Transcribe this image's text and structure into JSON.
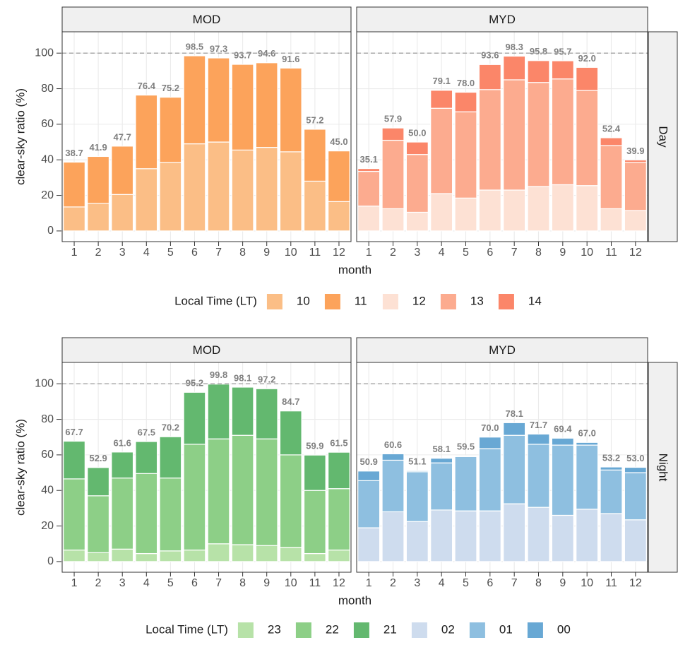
{
  "chart_data": [
    {
      "type": "bar",
      "stacked": true,
      "row_label": "Day",
      "x_label": "month",
      "y_label": "clear-sky ratio (%)",
      "legend_title": "Local Time (LT)",
      "categories": [
        "1",
        "2",
        "3",
        "4",
        "5",
        "6",
        "7",
        "8",
        "9",
        "10",
        "11",
        "12"
      ],
      "ylim": [
        -6,
        112
      ],
      "yticks": [
        0,
        20,
        40,
        60,
        80,
        100
      ],
      "hline": 100,
      "grid": true,
      "panels": [
        {
          "title": "MOD",
          "series": [
            {
              "name": "10",
              "color": "#fbbe86",
              "values": [
                13.5,
                15.5,
                20.5,
                35,
                38.5,
                49,
                50,
                45.5,
                47,
                44.5,
                28,
                16.5
              ]
            },
            {
              "name": "11",
              "color": "#fca35b",
              "values": [
                25.2,
                26.4,
                27.2,
                41.4,
                36.7,
                49.5,
                47.3,
                48.2,
                47.6,
                47.1,
                29.2,
                28.5
              ]
            }
          ],
          "totals": [
            38.7,
            41.9,
            47.7,
            76.4,
            75.2,
            98.5,
            97.3,
            93.7,
            94.6,
            91.6,
            57.2,
            45
          ],
          "total_labels": [
            "38.7",
            "41.9",
            "47.7",
            "76.4",
            "75.2",
            "98.5",
            "97.3",
            "93.7",
            "94.6",
            "91.6",
            "57.2",
            "45.0"
          ]
        },
        {
          "title": "MYD",
          "series": [
            {
              "name": "12",
              "color": "#fde1d4",
              "values": [
                14,
                12.5,
                10.5,
                21,
                18.5,
                23,
                23,
                25,
                26,
                25.5,
                12.5,
                11.5
              ]
            },
            {
              "name": "13",
              "color": "#fcab8f",
              "values": [
                19.5,
                38.5,
                32.5,
                48,
                48.5,
                56.5,
                62,
                58.5,
                59.5,
                53.5,
                35.5,
                27
              ]
            },
            {
              "name": "14",
              "color": "#fb8669",
              "values": [
                1.6,
                6.9,
                7,
                10.1,
                11,
                14.1,
                13.3,
                12.3,
                10.2,
                13,
                4.4,
                1.4
              ]
            }
          ],
          "totals": [
            35.1,
            57.9,
            50,
            79.1,
            78,
            93.6,
            98.3,
            95.8,
            95.7,
            92,
            52.4,
            39.9
          ],
          "total_labels": [
            "35.1",
            "57.9",
            "50.0",
            "79.1",
            "78.0",
            "93.6",
            "98.3",
            "95.8",
            "95.7",
            "92.0",
            "52.4",
            "39.9"
          ]
        }
      ]
    },
    {
      "type": "bar",
      "stacked": true,
      "row_label": "Night",
      "x_label": "month",
      "y_label": "clear-sky ratio (%)",
      "legend_title": "Local Time (LT)",
      "categories": [
        "1",
        "2",
        "3",
        "4",
        "5",
        "6",
        "7",
        "8",
        "9",
        "10",
        "11",
        "12"
      ],
      "ylim": [
        -6,
        112
      ],
      "yticks": [
        0,
        20,
        40,
        60,
        80,
        100
      ],
      "hline": 100,
      "grid": true,
      "panels": [
        {
          "title": "MOD",
          "series": [
            {
              "name": "23",
              "color": "#b7e2a8",
              "values": [
                6.5,
                5,
                7,
                4.5,
                6,
                6.5,
                10,
                9.5,
                9,
                8,
                4.5,
                6.5
              ]
            },
            {
              "name": "22",
              "color": "#8dcf87",
              "values": [
                40,
                32,
                40,
                45,
                41,
                59.5,
                59,
                61.5,
                60,
                52,
                35.5,
                34.5
              ]
            },
            {
              "name": "21",
              "color": "#63b86f",
              "values": [
                21.2,
                15.9,
                14.6,
                18,
                23.2,
                29.2,
                30.8,
                27.1,
                28.2,
                24.7,
                19.9,
                20.5
              ]
            }
          ],
          "totals": [
            67.7,
            52.9,
            61.6,
            67.5,
            70.2,
            95.2,
            99.8,
            98.1,
            97.2,
            84.7,
            59.9,
            61.5
          ],
          "total_labels": [
            "67.7",
            "52.9",
            "61.6",
            "67.5",
            "70.2",
            "95.2",
            "99.8",
            "98.1",
            "97.2",
            "84.7",
            "59.9",
            "61.5"
          ]
        },
        {
          "title": "MYD",
          "series": [
            {
              "name": "02",
              "color": "#cedcee",
              "values": [
                19,
                28,
                22.5,
                29,
                28.5,
                28.5,
                32.5,
                30.5,
                26,
                29.5,
                27,
                23.5
              ]
            },
            {
              "name": "01",
              "color": "#8ebfe0",
              "values": [
                26.5,
                29,
                28,
                26.5,
                30.5,
                35,
                38.5,
                35.5,
                39.5,
                36,
                24.5,
                26.5
              ]
            },
            {
              "name": "00",
              "color": "#68a8d4",
              "values": [
                5.4,
                3.6,
                0.6,
                2.6,
                0.5,
                6.5,
                7.1,
                5.7,
                3.9,
                1.5,
                1.7,
                3
              ]
            }
          ],
          "totals": [
            50.9,
            60.6,
            51.1,
            58.1,
            59.5,
            70,
            78.1,
            71.7,
            69.4,
            67,
            53.2,
            53
          ],
          "total_labels": [
            "50.9",
            "60.6",
            "51.1",
            "58.1",
            "59.5",
            "70.0",
            "78.1",
            "71.7",
            "69.4",
            "67.0",
            "53.2",
            "53.0"
          ]
        }
      ]
    }
  ]
}
